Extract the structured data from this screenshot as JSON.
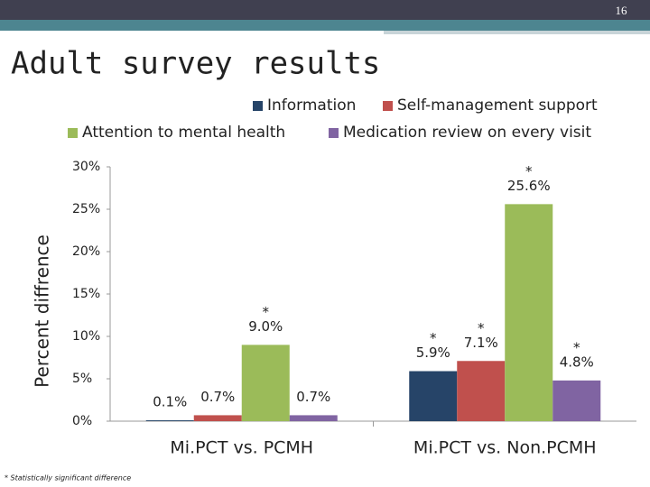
{
  "slide_number": "16",
  "title": "Adult survey results",
  "footnote": "* Statistically significant difference",
  "chart_data": {
    "type": "bar",
    "ylabel": "Percent diffrence",
    "categories": [
      "Mi.PCT vs. PCMH",
      "Mi.PCT vs. Non.PCMH"
    ],
    "series": [
      {
        "name": "Information",
        "color": "#264468",
        "values": [
          0.1,
          5.9
        ],
        "value_labels": [
          "0.1%",
          "5.9%"
        ],
        "significant": [
          false,
          true
        ]
      },
      {
        "name": "Self-management support",
        "color": "#c0504d",
        "values": [
          0.7,
          7.1
        ],
        "value_labels": [
          "0.7%",
          "7.1%"
        ],
        "significant": [
          false,
          true
        ]
      },
      {
        "name": "Attention to mental health",
        "color": "#9bbb59",
        "values": [
          9.0,
          25.6
        ],
        "value_labels": [
          "9.0%",
          "25.6%"
        ],
        "significant": [
          true,
          true
        ]
      },
      {
        "name": "Medication review on every visit",
        "color": "#8064a2",
        "values": [
          0.7,
          4.8
        ],
        "value_labels": [
          "0.7%",
          "4.8%"
        ],
        "significant": [
          false,
          true
        ]
      }
    ],
    "significance_marker": "*",
    "ylim": [
      0,
      30
    ],
    "yticks": [
      {
        "value": 0,
        "label": "0%"
      },
      {
        "value": 5,
        "label": "5%"
      },
      {
        "value": 10,
        "label": "10%"
      },
      {
        "value": 15,
        "label": "15%"
      },
      {
        "value": 20,
        "label": "20%"
      },
      {
        "value": 25,
        "label": "25%"
      },
      {
        "value": 30,
        "label": "30%"
      }
    ],
    "grid": false
  }
}
